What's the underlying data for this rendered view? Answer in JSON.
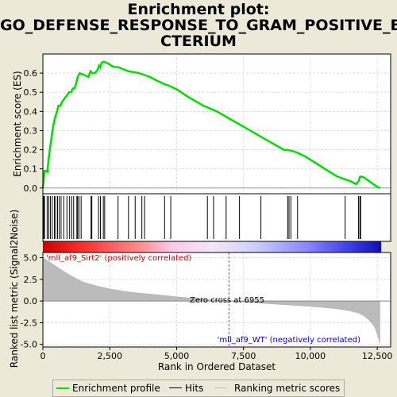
{
  "title_lines": [
    "Enrichment plot:",
    "GO_DEFENSE_RESPONSE_TO_GRAM_POSITIVE_BA",
    "CTERIUM"
  ],
  "legend": {
    "enrichment": "Enrichment profile",
    "hits": "Hits",
    "ranking": "Ranking metric scores"
  },
  "colors": {
    "enrichment": "#00dd00",
    "hits": "#000000",
    "ranking": "#bbbbbb",
    "positive_label": "#cc0000",
    "negative_label": "#0000cc",
    "background": "#ece9d8"
  },
  "chart_data": [
    {
      "type": "line",
      "name": "enrichment",
      "ylabel": "Enrichment score (ES)",
      "xlim": [
        0,
        13000
      ],
      "ylim": [
        -0.03,
        0.7
      ],
      "yticks": [
        0.0,
        0.1,
        0.2,
        0.3,
        0.4,
        0.5,
        0.6
      ],
      "ytick_labels": [
        "0.0",
        "0.1",
        "0.2",
        "0.3",
        "0.4",
        "0.5",
        "0.6"
      ],
      "grid": true,
      "x": [
        0,
        30,
        60,
        120,
        170,
        200,
        240,
        280,
        320,
        360,
        410,
        460,
        530,
        580,
        650,
        720,
        820,
        880,
        980,
        1050,
        1120,
        1180,
        1250,
        1300,
        1380,
        1450,
        1550,
        1700,
        1780,
        1850,
        1950,
        2050,
        2100,
        2150,
        2200,
        2280,
        2350,
        2450,
        2600,
        2850,
        3000,
        3200,
        3400,
        3600,
        3800,
        4000,
        4200,
        4500,
        4700,
        5000,
        5500,
        6000,
        6500,
        7000,
        7500,
        8000,
        8500,
        9000,
        9150,
        9300,
        9500,
        9800,
        10200,
        10600,
        11000,
        11300,
        11500,
        11700,
        11800,
        11850,
        11900,
        12000,
        12200,
        12400,
        12600
      ],
      "y": [
        0.0,
        0.04,
        0.09,
        0.09,
        0.085,
        0.13,
        0.18,
        0.22,
        0.26,
        0.3,
        0.34,
        0.37,
        0.4,
        0.43,
        0.43,
        0.45,
        0.47,
        0.48,
        0.5,
        0.5,
        0.52,
        0.52,
        0.55,
        0.58,
        0.6,
        0.595,
        0.59,
        0.58,
        0.61,
        0.6,
        0.6,
        0.62,
        0.64,
        0.63,
        0.655,
        0.66,
        0.655,
        0.65,
        0.635,
        0.63,
        0.62,
        0.61,
        0.605,
        0.6,
        0.59,
        0.58,
        0.565,
        0.545,
        0.535,
        0.515,
        0.47,
        0.43,
        0.4,
        0.36,
        0.32,
        0.28,
        0.24,
        0.2,
        0.198,
        0.195,
        0.185,
        0.165,
        0.13,
        0.095,
        0.06,
        0.045,
        0.035,
        0.02,
        0.035,
        0.058,
        0.06,
        0.055,
        0.035,
        0.015,
        0.0
      ]
    },
    {
      "type": "bar",
      "name": "hits",
      "hit_positions": [
        30,
        60,
        160,
        220,
        280,
        350,
        430,
        480,
        550,
        610,
        680,
        780,
        900,
        1000,
        1080,
        1150,
        1270,
        1300,
        1350,
        1430,
        1800,
        1830,
        2080,
        2150,
        2260,
        2310,
        2810,
        3200,
        3450,
        3700,
        3800,
        4550,
        4780,
        6150,
        6380,
        6850,
        7350,
        8150,
        9150,
        9200,
        9270,
        9520,
        11300,
        11800,
        11850,
        11880
      ]
    },
    {
      "type": "area",
      "name": "ranking_metric",
      "xlabel": "Rank in Ordered Dataset",
      "ylabel": "Ranked list metric (Signal2Noise)",
      "xlim": [
        0,
        13000
      ],
      "ylim": [
        -5.3,
        5.6
      ],
      "xticks": [
        0,
        2500,
        5000,
        7500,
        10000,
        12500
      ],
      "xtick_labels": [
        "0",
        "2,500",
        "5,000",
        "7,500",
        "10,000",
        "12,500"
      ],
      "yticks": [
        -5.0,
        -2.5,
        0.0,
        2.5,
        5.0
      ],
      "ytick_labels": [
        "-5.0",
        "-2.5",
        "0.0",
        "2.5",
        "5.0"
      ],
      "grid": true,
      "x": [
        0,
        100,
        300,
        600,
        1000,
        1500,
        2000,
        2500,
        3000,
        3500,
        4000,
        4500,
        5000,
        5500,
        6000,
        6500,
        6955,
        7500,
        8000,
        8500,
        9000,
        9500,
        10000,
        10500,
        11000,
        11500,
        11800,
        12000,
        12200,
        12400,
        12500,
        12600
      ],
      "y": [
        5.0,
        4.8,
        4.4,
        3.8,
        3.0,
        2.2,
        1.75,
        1.4,
        1.15,
        0.95,
        0.8,
        0.65,
        0.5,
        0.35,
        0.22,
        0.1,
        0.0,
        -0.12,
        -0.22,
        -0.32,
        -0.42,
        -0.52,
        -0.62,
        -0.75,
        -0.9,
        -1.15,
        -1.4,
        -1.7,
        -2.2,
        -3.0,
        -3.8,
        -4.9
      ],
      "zero_cross_label": "Zero cross at 6955",
      "zero_cross": 6955,
      "positive_label": "'mll_af9_Sirt2' (positively correlated)",
      "negative_label": "'mll_af9_WT' (negatively correlated)"
    }
  ]
}
